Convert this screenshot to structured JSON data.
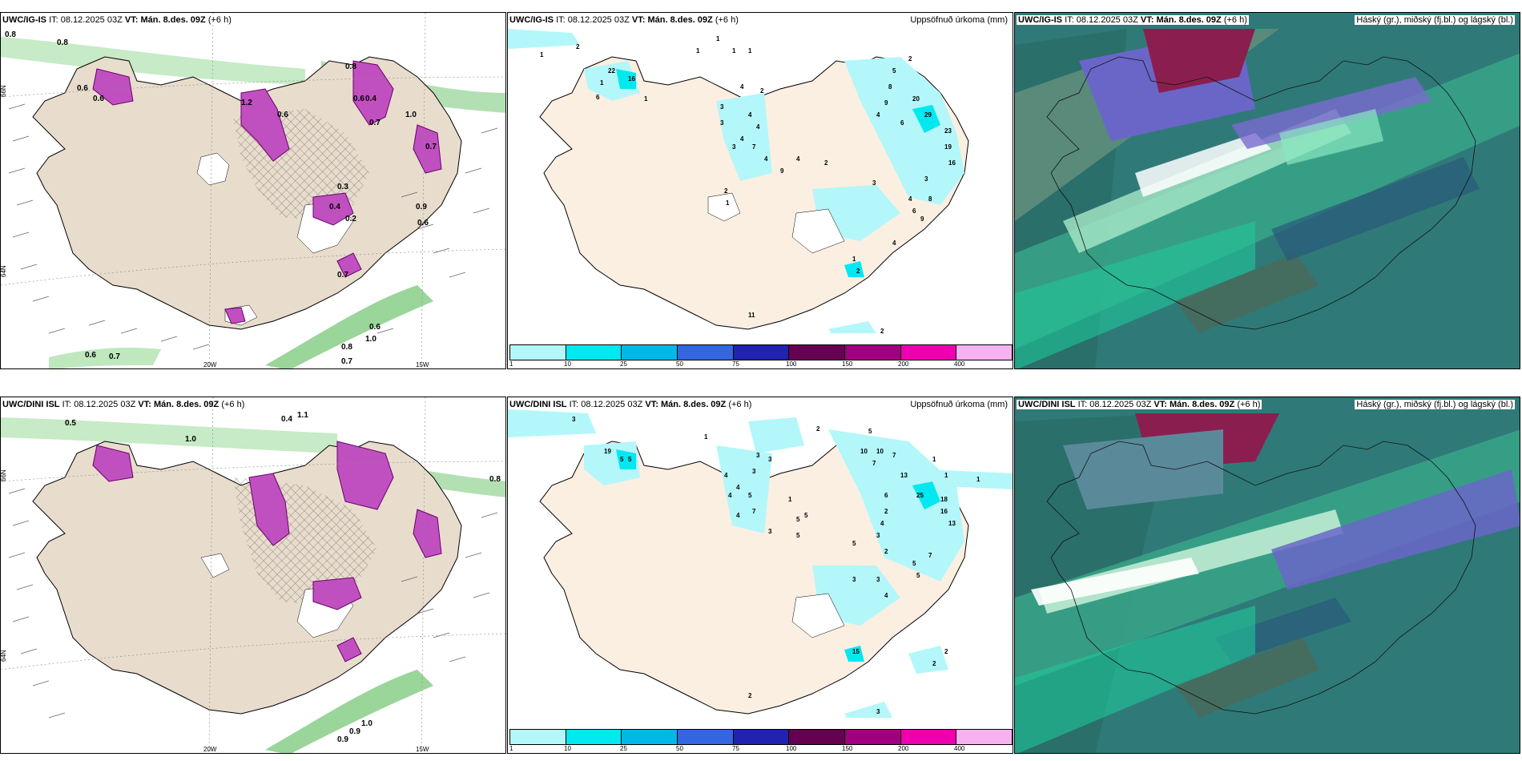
{
  "rows": [
    {
      "model": "UWC/IG-IS",
      "it_label": "IT:",
      "it_value": "08.12.2025 03Z",
      "vt_label": "VT:",
      "vt_value": "Mán. 8.des. 09Z",
      "lead": "(+6 h)"
    },
    {
      "model": "UWC/DINI ISL",
      "it_label": "IT:",
      "it_value": "08.12.2025 03Z",
      "vt_label": "VT:",
      "vt_value": "Mán. 8.des. 09Z",
      "lead": "(+6 h)"
    }
  ],
  "precip_title": "Uppsöfnuð úrkoma (mm)",
  "cloud_title": "Háský (gr.), miðský (fj.bl.) og lágský (bl.)",
  "colorbar": {
    "ticks": [
      "1",
      "10",
      "25",
      "50",
      "75",
      "100",
      "150",
      "200",
      "400"
    ],
    "colors": [
      "#b3f7fa",
      "#00e8f0",
      "#00b8e8",
      "#3366e0",
      "#2222b0",
      "#660050",
      "#a00080",
      "#ee00b0",
      "#f7b0f0"
    ]
  },
  "axis_labels": {
    "lon_20": "20W",
    "lon_15": "15W",
    "lat_66": "66N",
    "lat_64": "64N"
  },
  "panel1_labels": {
    "top": [
      {
        "t": "0.8"
      },
      {
        "t": "0.8"
      },
      {
        "t": "0.6"
      },
      {
        "t": "0.6"
      },
      {
        "t": "0.8"
      },
      {
        "t": "1.2"
      },
      {
        "t": "0.4"
      },
      {
        "t": "0.6"
      },
      {
        "t": "0.7"
      },
      {
        "t": "1.0"
      },
      {
        "t": "0.3"
      },
      {
        "t": "0.4"
      },
      {
        "t": "0.2"
      },
      {
        "t": "0.9"
      },
      {
        "t": "0.6"
      },
      {
        "t": "0.7"
      },
      {
        "t": "0.6"
      },
      {
        "t": "0.7"
      }
    ],
    "bottom": [
      {
        "t": "0.6"
      },
      {
        "t": "0.7"
      },
      {
        "t": "0.8"
      },
      {
        "t": "0.7"
      },
      {
        "t": "1.0"
      },
      {
        "t": "0.6"
      },
      {
        "t": "0.5"
      },
      {
        "t": "0.4"
      },
      {
        "t": "1.0"
      },
      {
        "t": "0.8"
      },
      {
        "t": "0.9"
      },
      {
        "t": "1.1"
      },
      {
        "t": "1.0"
      },
      {
        "t": "0.9"
      }
    ]
  },
  "precip_top_values": [
    "1",
    "2",
    "22",
    "16",
    "1",
    "6",
    "1",
    "1",
    "1",
    "1",
    "1",
    "3",
    "3",
    "4",
    "4",
    "4",
    "2",
    "4",
    "7",
    "3",
    "4",
    "9",
    "4",
    "2",
    "2",
    "5",
    "8",
    "9",
    "6",
    "20",
    "4",
    "29",
    "23",
    "19",
    "16",
    "3",
    "3",
    "8",
    "4",
    "6",
    "9",
    "4",
    "2",
    "1",
    "2",
    "1",
    "11",
    "2"
  ],
  "precip_bottom_values": [
    "3",
    "1",
    "2",
    "5",
    "19",
    "10",
    "7",
    "5",
    "5",
    "1",
    "3",
    "4",
    "4",
    "4",
    "3",
    "5",
    "4",
    "7",
    "3",
    "1",
    "3",
    "5",
    "10",
    "7",
    "6",
    "13",
    "25",
    "18",
    "16",
    "13",
    "1",
    "1",
    "5",
    "5",
    "2",
    "4",
    "3",
    "2",
    "5",
    "7",
    "5",
    "5",
    "3",
    "3",
    "4",
    "2",
    "2",
    "2",
    "3",
    "15"
  ]
}
